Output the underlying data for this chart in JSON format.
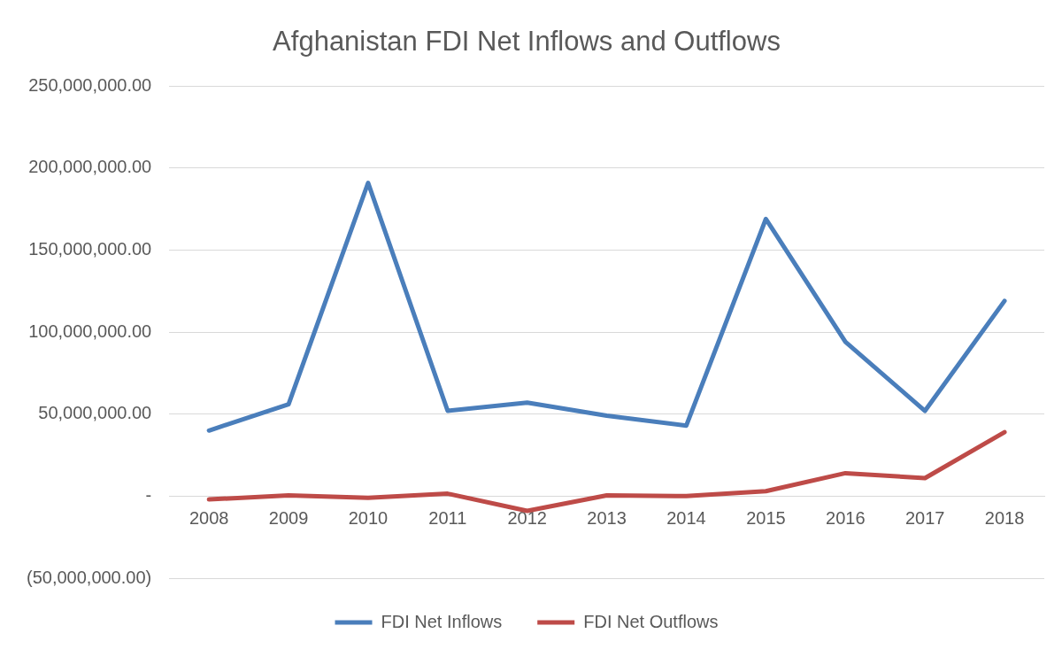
{
  "chart_data": {
    "type": "line",
    "title": "Afghanistan FDI Net Inflows and Outflows",
    "categories": [
      "2008",
      "2009",
      "2010",
      "2011",
      "2012",
      "2013",
      "2014",
      "2015",
      "2016",
      "2017",
      "2018"
    ],
    "series": [
      {
        "name": "FDI Net Inflows",
        "color": "#4a7ebb",
        "values": [
          40000000,
          56000000,
          191000000,
          52000000,
          57000000,
          49000000,
          43000000,
          169000000,
          94000000,
          52000000,
          119000000
        ]
      },
      {
        "name": "FDI Net Outflows",
        "color": "#be4b48",
        "values": [
          -2000000,
          500000,
          -1000000,
          1500000,
          -9000000,
          500000,
          0,
          3000000,
          14000000,
          11000000,
          39000000
        ]
      }
    ],
    "ylim": [
      -50000000,
      250000000
    ],
    "yticks": [
      {
        "value": -50000000,
        "label": "(50,000,000.00)"
      },
      {
        "value": 0,
        "label": "-"
      },
      {
        "value": 50000000,
        "label": "50,000,000.00"
      },
      {
        "value": 100000000,
        "label": "100,000,000.00"
      },
      {
        "value": 150000000,
        "label": "150,000,000.00"
      },
      {
        "value": 200000000,
        "label": "200,000,000.00"
      },
      {
        "value": 250000000,
        "label": "250,000,000.00"
      }
    ],
    "grid": "y",
    "legend": "bottom",
    "marker": "none",
    "line_style": "solid"
  }
}
